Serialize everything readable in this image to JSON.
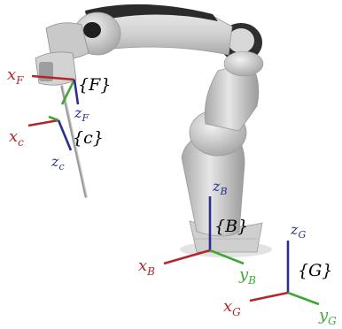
{
  "colors": {
    "x_axis": "#b3262e",
    "y_axis": "#3fa535",
    "z_axis": "#2a2f8f",
    "robot_light": "#d9d9d9",
    "robot_mid": "#bdbdbd",
    "robot_dark": "#2b2b2b",
    "text": "#000000"
  },
  "frames": {
    "F": {
      "name": "{F}",
      "x_label": {
        "main": "x",
        "sub": "F"
      },
      "z_label": {
        "main": "z",
        "sub": "F"
      }
    },
    "c": {
      "name": "{c}",
      "x_label": {
        "main": "x",
        "sub": "c"
      },
      "z_label": {
        "main": "z",
        "sub": "c"
      }
    },
    "B": {
      "name": "{B}",
      "x_label": {
        "main": "x",
        "sub": "B"
      },
      "y_label": {
        "main": "y",
        "sub": "B"
      },
      "z_label": {
        "main": "z",
        "sub": "B"
      }
    },
    "G": {
      "name": "{G}",
      "x_label": {
        "main": "x",
        "sub": "G"
      },
      "y_label": {
        "main": "y",
        "sub": "G"
      },
      "z_label": {
        "main": "z",
        "sub": "G"
      }
    }
  },
  "icons": [
    "robot-arm-icon"
  ]
}
